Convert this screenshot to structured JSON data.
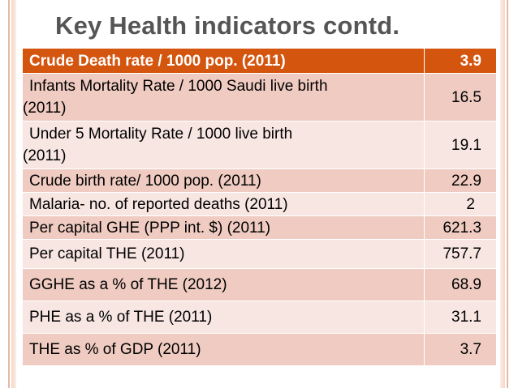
{
  "slide": {
    "title": "Key Health indicators contd."
  },
  "table": {
    "rows": [
      {
        "label": "Crude Death rate / 1000 pop. (2011)",
        "value": "3.9"
      },
      {
        "label_line1": "Infants Mortality Rate / 1000 Saudi live birth",
        "label_line2": "(2011)",
        "value": "16.5"
      },
      {
        "label_line1": "Under 5 Mortality Rate / 1000 live birth",
        "label_line2": "(2011)",
        "value": "19.1"
      },
      {
        "label": "Crude birth rate/ 1000 pop. (2011)",
        "value": "22.9"
      },
      {
        "label": "Malaria- no. of  reported deaths (2011)",
        "value": "2"
      },
      {
        "label": "Per capital GHE (PPP int. $) (2011)",
        "value": "621.3"
      },
      {
        "label": "Per capital THE (2011)",
        "value": "757.7"
      },
      {
        "label": "GGHE as a % of THE (2012)",
        "value": "68.9"
      },
      {
        "label": "PHE as a % of THE (2011)",
        "value": "31.1"
      },
      {
        "label": "THE as % of GDP (2011)",
        "value": "3.7"
      }
    ]
  }
}
